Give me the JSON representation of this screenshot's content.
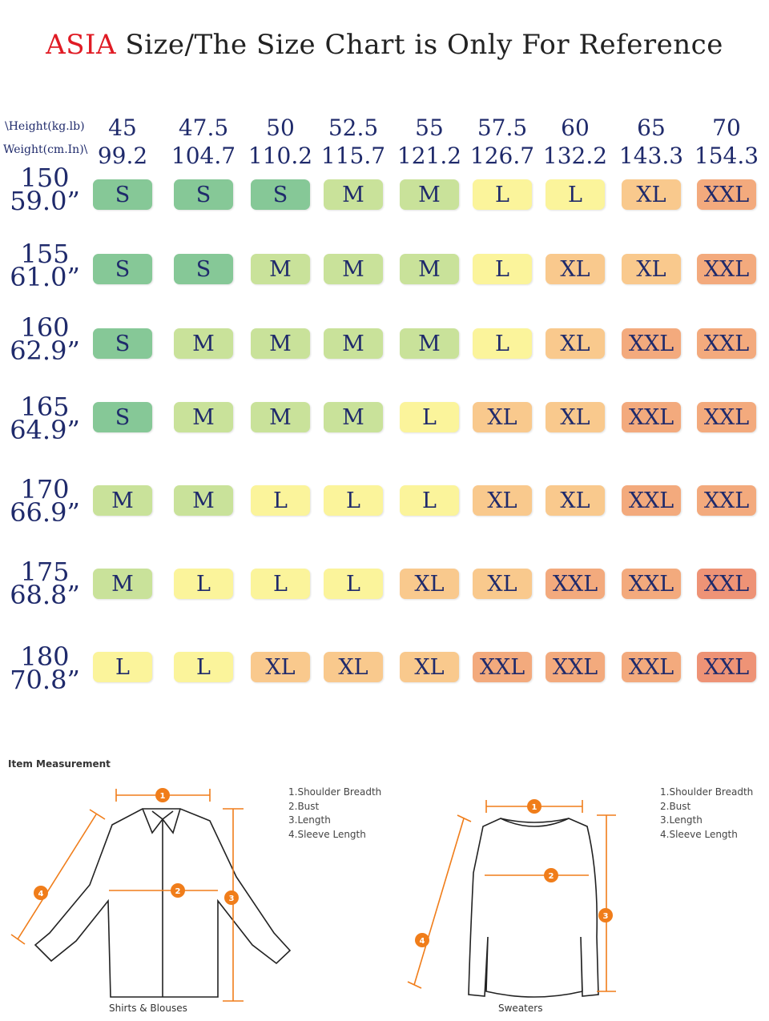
{
  "title": {
    "highlight": "ASIA",
    "rest": " Size/The Size Chart is Only For Reference"
  },
  "axis_labels": {
    "weight": "\\Height(kg.lb)",
    "height": "Weight(cm.In)\\"
  },
  "weights": [
    {
      "kg": "45",
      "lb": "99.2"
    },
    {
      "kg": "47.5",
      "lb": "104.7"
    },
    {
      "kg": "50",
      "lb": "110.2"
    },
    {
      "kg": "52.5",
      "lb": "115.7"
    },
    {
      "kg": "55",
      "lb": "121.2"
    },
    {
      "kg": "57.5",
      "lb": "126.7"
    },
    {
      "kg": "60",
      "lb": "132.2"
    },
    {
      "kg": "65",
      "lb": "143.3"
    },
    {
      "kg": "70",
      "lb": "154.3"
    }
  ],
  "heights": [
    {
      "cm": "150",
      "in": "59.0”"
    },
    {
      "cm": "155",
      "in": "61.0”"
    },
    {
      "cm": "160",
      "in": "62.9”"
    },
    {
      "cm": "165",
      "in": "64.9”"
    },
    {
      "cm": "170",
      "in": "66.9”"
    },
    {
      "cm": "175",
      "in": "68.8”"
    },
    {
      "cm": "180",
      "in": "70.8”"
    }
  ],
  "sizes": [
    [
      "S",
      "S",
      "S",
      "M",
      "M",
      "L",
      "L",
      "XL",
      "XXL"
    ],
    [
      "S",
      "S",
      "M",
      "M",
      "M",
      "L",
      "XL",
      "XL",
      "XXL"
    ],
    [
      "S",
      "M",
      "M",
      "M",
      "M",
      "L",
      "XL",
      "XXL",
      "XXL"
    ],
    [
      "S",
      "M",
      "M",
      "M",
      "L",
      "XL",
      "XL",
      "XXL",
      "XXL"
    ],
    [
      "M",
      "M",
      "L",
      "L",
      "L",
      "XL",
      "XL",
      "XXL",
      "XXL"
    ],
    [
      "M",
      "L",
      "L",
      "L",
      "XL",
      "XL",
      "XXL",
      "XXL",
      "XXL"
    ],
    [
      "L",
      "L",
      "XL",
      "XL",
      "XL",
      "XXL",
      "XXL",
      "XXL",
      "XXL"
    ]
  ],
  "size_colors": {
    "S": "#86c897",
    "M": "#c9e29a",
    "L": "#fbf49b",
    "XL": "#f9c98d",
    "XXL": "#f3aa7d",
    "XXL_dark": "#ee9376"
  },
  "measurement": {
    "title": "Item Measurement",
    "legend_shirt": [
      "1.Shoulder Breadth",
      "2.Bust",
      "3.Length",
      "4.Sleeve Length"
    ],
    "legend_sweater": [
      "1.Shoulder Breadth",
      "2.Bust",
      "3.Length",
      "4.Sleeve Length"
    ],
    "caption_shirt": "Shirts & Blouses",
    "caption_sweater": "Sweaters",
    "badge_numbers": [
      "1",
      "2",
      "3",
      "4"
    ],
    "accent_color": "#f07d1a"
  }
}
